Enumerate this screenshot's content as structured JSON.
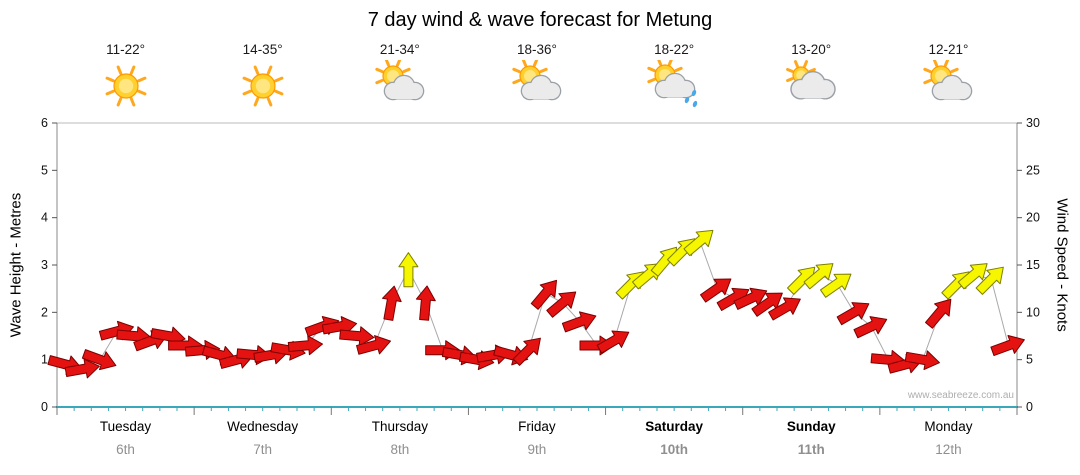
{
  "title": "7 day wind & wave forecast for Metung",
  "watermark": "www.seabreeze.com.au",
  "left_axis": {
    "label": "Wave Height - Metres",
    "ticks": [
      0,
      1,
      2,
      3,
      4,
      5,
      6
    ],
    "min": 0,
    "max": 6
  },
  "right_axis": {
    "label": "Wind Speed - Knots",
    "ticks": [
      0,
      5,
      10,
      15,
      20,
      25,
      30
    ],
    "min": 0,
    "max": 30
  },
  "days": [
    {
      "name": "Tuesday",
      "date": "6th",
      "temp": "11-22°",
      "icon": "sunny",
      "weekend": false
    },
    {
      "name": "Wednesday",
      "date": "7th",
      "temp": "14-35°",
      "icon": "sunny",
      "weekend": false
    },
    {
      "name": "Thursday",
      "date": "8th",
      "temp": "21-34°",
      "icon": "partly-cloudy",
      "weekend": false
    },
    {
      "name": "Friday",
      "date": "9th",
      "temp": "18-36°",
      "icon": "partly-cloudy",
      "weekend": false
    },
    {
      "name": "Saturday",
      "date": "10th",
      "temp": "18-22°",
      "icon": "showers",
      "weekend": true
    },
    {
      "name": "Sunday",
      "date": "11th",
      "temp": "13-20°",
      "icon": "mostly-cloudy",
      "weekend": true
    },
    {
      "name": "Monday",
      "date": "12th",
      "temp": "12-21°",
      "icon": "partly-cloudy",
      "weekend": false
    }
  ],
  "chart_data": {
    "type": "scatter",
    "subtype": "wind-arrows",
    "title": "7 day wind & wave forecast for Metung",
    "y_left": {
      "label": "Wave Height - Metres",
      "range": [
        0,
        6
      ]
    },
    "y_right": {
      "label": "Wind Speed - Knots",
      "range": [
        0,
        30
      ]
    },
    "x_categories": [
      "Tuesday 6th",
      "Wednesday 7th",
      "Thursday 8th",
      "Friday 9th",
      "Saturday 10th",
      "Sunday 11th",
      "Monday 12th"
    ],
    "points_per_day": 8,
    "x_resolution": "3-hourly",
    "colors": {
      "red_arrow": "#e51212",
      "yellow_arrow": "#f6f600",
      "yellow_from_knots": 13,
      "connector": "#aaaaaa",
      "axis_teal": "#3ba7b8"
    },
    "series": [
      {
        "day": "Tuesday",
        "knots": [
          4.5,
          4,
          5,
          8,
          7.5,
          7,
          7.5,
          6.5
        ],
        "dirs": [
          15,
          -10,
          20,
          -15,
          5,
          -20,
          10,
          0
        ]
      },
      {
        "day": "Wednesday",
        "knots": [
          6,
          5.5,
          5,
          5.5,
          5.5,
          6,
          6.5,
          8.5
        ],
        "dirs": [
          -5,
          15,
          -15,
          5,
          -10,
          10,
          -5,
          -20
        ]
      },
      {
        "day": "Thursday",
        "knots": [
          8.5,
          7.5,
          6.5,
          11,
          14.5,
          11,
          6,
          5.5
        ],
        "dirs": [
          -10,
          5,
          -15,
          -80,
          -90,
          -85,
          0,
          10
        ]
      },
      {
        "day": "Friday",
        "knots": [
          5,
          5.5,
          5.5,
          6,
          12,
          11,
          9,
          6.5
        ],
        "dirs": [
          10,
          -10,
          15,
          -45,
          -50,
          -40,
          -20,
          0
        ]
      },
      {
        "day": "Saturday",
        "knots": [
          7,
          13,
          14,
          15.5,
          16.5,
          17.5,
          12.5,
          11.5
        ],
        "dirs": [
          -30,
          -45,
          -40,
          -50,
          -45,
          -40,
          -35,
          -30
        ]
      },
      {
        "day": "Sunday",
        "knots": [
          11.5,
          11,
          10.5,
          13.5,
          14,
          13,
          10,
          8.5
        ],
        "dirs": [
          -25,
          -35,
          -30,
          -45,
          -40,
          -35,
          -30,
          -25
        ]
      },
      {
        "day": "Monday",
        "knots": [
          5,
          4.5,
          5,
          10,
          13,
          14,
          13.5,
          6.5
        ],
        "dirs": [
          5,
          -15,
          10,
          -50,
          -45,
          -40,
          -45,
          -20
        ]
      }
    ]
  }
}
